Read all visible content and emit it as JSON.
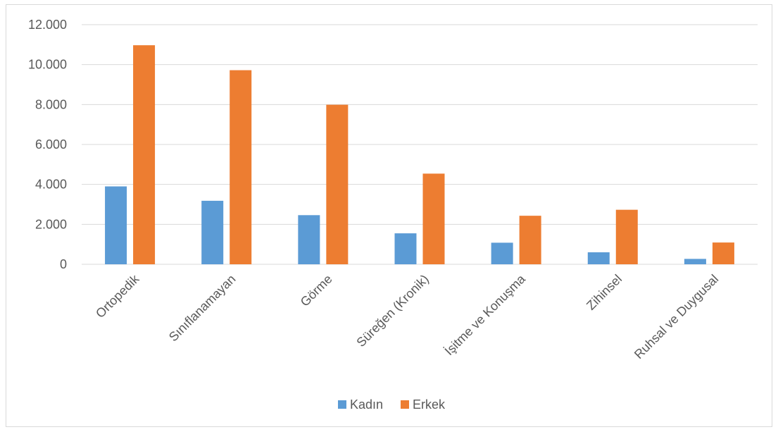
{
  "chart_data": {
    "type": "bar",
    "categories": [
      "Ortopedik",
      "Sınıflanamayan",
      "Görme",
      "Süreğen (Kronik)",
      "İşitme ve Konuşma",
      "Zihinsel",
      "Ruhsal ve Duygusal"
    ],
    "series": [
      {
        "name": "Kadın",
        "color": "#5b9bd5",
        "values": [
          3900,
          3180,
          2460,
          1550,
          1080,
          600,
          270
        ]
      },
      {
        "name": "Erkek",
        "color": "#ed7d31",
        "values": [
          10970,
          9720,
          7990,
          4540,
          2430,
          2730,
          1090
        ]
      }
    ],
    "ylim": [
      0,
      12000
    ],
    "yticks": [
      0,
      2000,
      4000,
      6000,
      8000,
      10000,
      12000
    ],
    "ytick_labels": [
      "0",
      "2.000",
      "4.000",
      "6.000",
      "8.000",
      "10.000",
      "12.000"
    ],
    "title": "",
    "xlabel": "",
    "ylabel": "",
    "grid": true,
    "legend_position": "bottom",
    "gridline_color": "#d9d9d9"
  }
}
